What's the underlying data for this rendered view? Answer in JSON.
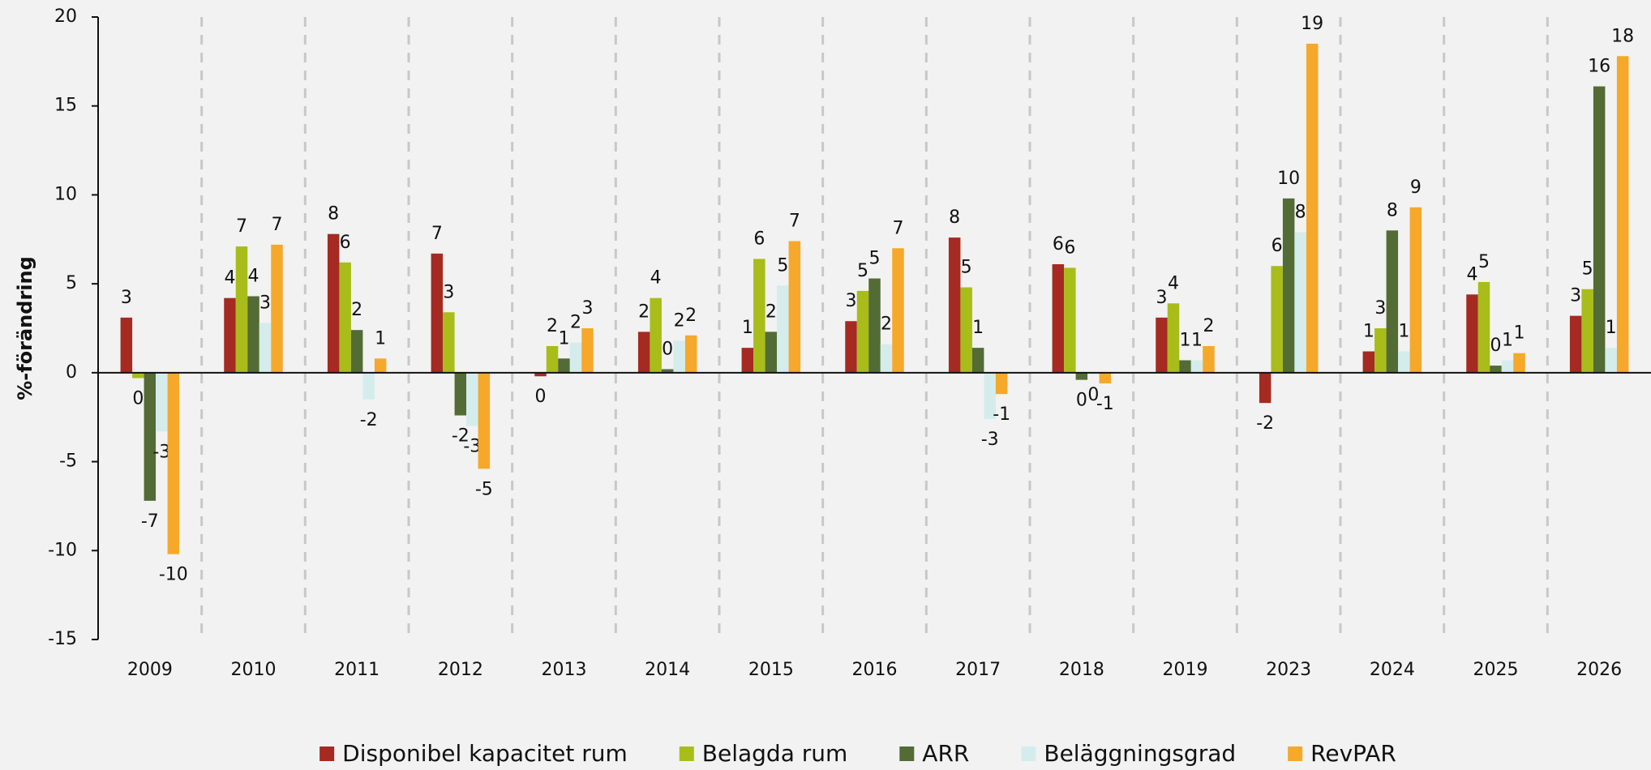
{
  "chart_data": {
    "type": "bar",
    "ylabel": "%-förändring",
    "categories": [
      "2009",
      "2010",
      "2011",
      "2012",
      "2013",
      "2014",
      "2015",
      "2016",
      "2017",
      "2018",
      "2019",
      "2023",
      "2024",
      "2025",
      "2026"
    ],
    "series": [
      {
        "name": "Disponibel kapacitet rum",
        "color": "#a52a22",
        "values": [
          3.1,
          4.2,
          7.8,
          6.7,
          -0.2,
          2.3,
          1.4,
          2.9,
          7.6,
          6.1,
          3.1,
          -1.7,
          1.2,
          4.4,
          3.2
        ],
        "value_labels": [
          "3",
          "4",
          "8",
          "7",
          "0",
          "2",
          "1",
          "3",
          "8",
          "6",
          "3",
          "-2",
          "1",
          "4",
          "3"
        ]
      },
      {
        "name": "Belagda rum",
        "color": "#a8bd1a",
        "values": [
          -0.3,
          7.1,
          6.2,
          3.4,
          1.5,
          4.2,
          6.4,
          4.6,
          4.8,
          5.9,
          3.9,
          6.0,
          2.5,
          5.1,
          4.7
        ],
        "value_labels": [
          "0",
          "7",
          "6",
          "3",
          "2",
          "4",
          "6",
          "5",
          "5",
          "6",
          "4",
          "6",
          "3",
          "5",
          "5"
        ]
      },
      {
        "name": "ARR",
        "color": "#536b35",
        "values": [
          -7.2,
          4.3,
          2.4,
          -2.4,
          0.8,
          0.2,
          2.3,
          5.3,
          1.4,
          -0.4,
          0.7,
          9.8,
          8.0,
          0.4,
          16.1
        ],
        "value_labels": [
          "-7",
          "4",
          "2",
          "-2",
          "1",
          "0",
          "2",
          "5",
          "1",
          "0",
          "1",
          "10",
          "8",
          "0",
          "16"
        ]
      },
      {
        "name": "Beläggningsgrad",
        "color": "#d5ecec",
        "values": [
          -3.3,
          2.8,
          -1.5,
          -3.0,
          1.7,
          1.8,
          4.9,
          1.6,
          -2.6,
          -0.1,
          0.7,
          7.9,
          1.2,
          0.7,
          1.4
        ],
        "value_labels": [
          "-3",
          "3",
          "-2",
          "-3",
          "2",
          "2",
          "5",
          "2",
          "-3",
          "0",
          "1",
          "8",
          "1",
          "1",
          "1"
        ]
      },
      {
        "name": "RevPAR",
        "color": "#f5a82a",
        "values": [
          -10.2,
          7.2,
          0.8,
          -5.4,
          2.5,
          2.1,
          7.4,
          7.0,
          -1.2,
          -0.6,
          1.5,
          18.5,
          9.3,
          1.1,
          17.8
        ],
        "value_labels": [
          "-10",
          "7",
          "1",
          "-5",
          "3",
          "2",
          "7",
          "7",
          "-1",
          "-1",
          "2",
          "19",
          "9",
          "1",
          "18"
        ]
      }
    ],
    "ylim": [
      -15,
      20
    ],
    "yticks": [
      -15,
      -10,
      -5,
      0,
      5,
      10,
      15,
      20
    ],
    "grid": false,
    "legend": "bottom"
  }
}
